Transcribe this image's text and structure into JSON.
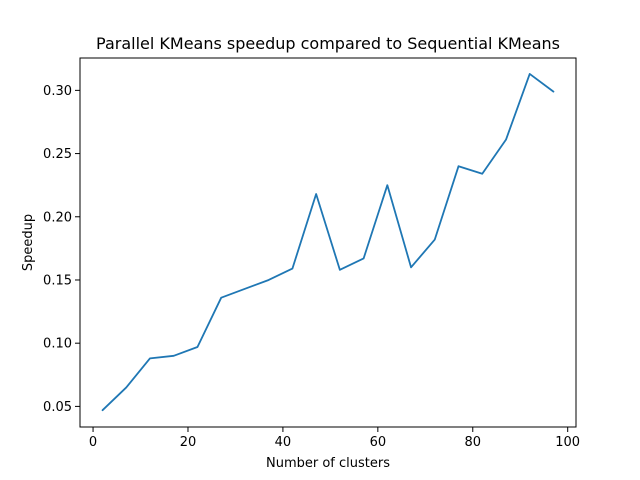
{
  "chart_data": {
    "type": "line",
    "title": "Parallel KMeans speedup compared to Sequential KMeans",
    "xlabel": "Number of clusters",
    "ylabel": "Speedup",
    "xlim": [
      -2.75,
      101.75
    ],
    "ylim": [
      0.0337,
      0.3256
    ],
    "xticks": [
      0,
      20,
      40,
      60,
      80,
      100
    ],
    "xtick_labels": [
      "0",
      "20",
      "40",
      "60",
      "80",
      "100"
    ],
    "yticks": [
      0.05,
      0.1,
      0.15,
      0.2,
      0.25,
      0.3
    ],
    "ytick_labels": [
      "0.05",
      "0.10",
      "0.15",
      "0.20",
      "0.25",
      "0.30"
    ],
    "grid": false,
    "series": [
      {
        "color": "#1f77b4",
        "x": [
          2,
          7,
          12,
          17,
          22,
          27,
          32,
          37,
          42,
          47,
          52,
          57,
          62,
          67,
          72,
          77,
          82,
          87,
          92,
          97
        ],
        "y": [
          0.047,
          0.065,
          0.088,
          0.09,
          0.097,
          0.136,
          0.143,
          0.15,
          0.159,
          0.218,
          0.158,
          0.167,
          0.225,
          0.16,
          0.182,
          0.24,
          0.234,
          0.261,
          0.313,
          0.299
        ]
      }
    ]
  }
}
